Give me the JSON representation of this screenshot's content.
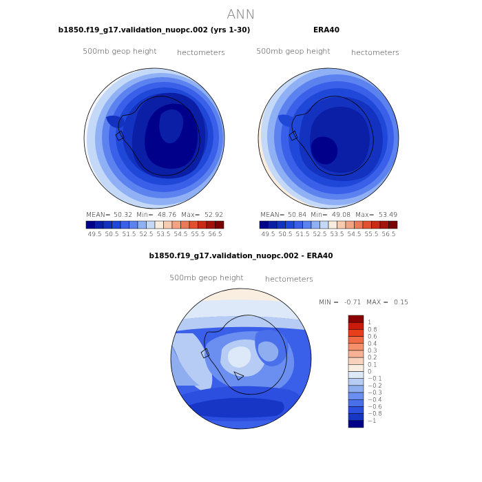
{
  "page_title": "ANN",
  "chart_data": [
    {
      "type": "heatmap",
      "title": "b1850.f19_g17.validation_nuopc.002 (yrs 1-30)",
      "left_label": "500mb geop height",
      "right_label": "hectometers",
      "stats": {
        "mean_label": "MEAN=",
        "mean": "50.32",
        "min_label": "Min=",
        "min": "48.76",
        "max_label": "Max=",
        "max": "52.92"
      },
      "colorbar": {
        "labels": [
          "49.5",
          "50.5",
          "51.5",
          "52.5",
          "53.5",
          "54.5",
          "55.5",
          "56.5"
        ],
        "colors": [
          "#00008b",
          "#0a1ea6",
          "#1432c0",
          "#2048d8",
          "#3a5fe8",
          "#5c82f0",
          "#8fb0f5",
          "#c4d8f8",
          "#f7ecde",
          "#f7cbb0",
          "#f3a283",
          "#ec7a58",
          "#e2502f",
          "#c92b16",
          "#a3130a",
          "#7a0404"
        ]
      }
    },
    {
      "type": "heatmap",
      "title": "ERA40",
      "left_label": "500mb geop height",
      "right_label": "hectometers",
      "stats": {
        "mean_label": "MEAN=",
        "mean": "50.84",
        "min_label": "Min=",
        "min": "49.08",
        "max_label": "Max=",
        "max": "53.49"
      },
      "colorbar": {
        "labels": [
          "49.5",
          "50.5",
          "51.5",
          "52.5",
          "53.5",
          "54.5",
          "55.5",
          "56.5"
        ],
        "colors": [
          "#00008b",
          "#0a1ea6",
          "#1432c0",
          "#2048d8",
          "#3a5fe8",
          "#5c82f0",
          "#8fb0f5",
          "#c4d8f8",
          "#f7ecde",
          "#f7cbb0",
          "#f3a283",
          "#ec7a58",
          "#e2502f",
          "#c92b16",
          "#a3130a",
          "#7a0404"
        ]
      }
    },
    {
      "type": "heatmap",
      "title": "b1850.f19_g17.validation_nuopc.002 - ERA40",
      "left_label": "500mb geop height",
      "right_label": "hectometers",
      "stats": {
        "min_label": "MIN =",
        "min": "-0.71",
        "max_label": "MAX =",
        "max": "0.15"
      },
      "colorbar": {
        "labels": [
          "1",
          "0.8",
          "0.6",
          "0.4",
          "0.3",
          "0.2",
          "0.1",
          "0",
          "−0.1",
          "−0.2",
          "−0.3",
          "−0.4",
          "−0.6",
          "−0.8",
          "−1"
        ],
        "colors": [
          "#8b0000",
          "#c91a0c",
          "#e83e1c",
          "#f26a44",
          "#f58f6c",
          "#f7b295",
          "#f8d2bd",
          "#faeee0",
          "#dde9f8",
          "#b6ccf4",
          "#8eaef0",
          "#6a8ff0",
          "#4a6feb",
          "#2c4fe0",
          "#1736c6",
          "#00008b"
        ]
      }
    }
  ]
}
